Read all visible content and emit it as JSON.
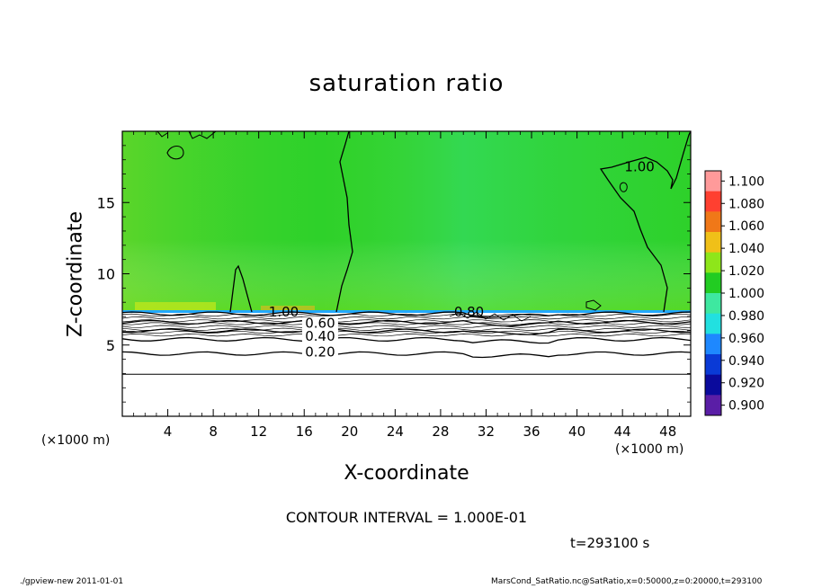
{
  "figure": {
    "title": "saturation ratio",
    "contour_interval": "CONTOUR INTERVAL = 1.000E-01",
    "time_label": "t=293100 s",
    "footer_left": "./gpview-new  2011-01-01",
    "footer_right": "MarsCond_SatRatio.nc@SatRatio,x=0:50000,z=0:20000,t=293100"
  },
  "chart_data": {
    "type": "heatmap",
    "title": "saturation ratio",
    "xlabel": "X-coordinate",
    "ylabel": "Z-coordinate",
    "x_unit_label": "(×1000 m)",
    "y_unit_label": "(×1000 m)",
    "xlim": [
      0,
      50
    ],
    "ylim": [
      0,
      20
    ],
    "x_ticks": [
      4,
      8,
      12,
      16,
      20,
      24,
      28,
      32,
      36,
      40,
      44,
      48
    ],
    "y_ticks": [
      5,
      10,
      15
    ],
    "grid": false,
    "colorbar": {
      "placement": "right",
      "levels": [
        "0.900",
        "0.920",
        "0.940",
        "0.960",
        "0.980",
        "1.000",
        "1.020",
        "1.040",
        "1.060",
        "1.080",
        "1.100"
      ],
      "colors": [
        "#5a1ea6",
        "#0a0a9c",
        "#0a3ad6",
        "#1e88ff",
        "#22e0e0",
        "#3ee8a0",
        "#22cc22",
        "#8ee61a",
        "#f0c018",
        "#f07818",
        "#ff4030",
        "#ff9a9a"
      ]
    },
    "contour_labels": [
      "1.00",
      "1.00",
      "0.80",
      "0.60",
      "0.40",
      "0.20"
    ],
    "field_summary": {
      "upper_region_z_range": [
        7.2,
        20
      ],
      "upper_region_value_range": [
        0.98,
        1.03
      ],
      "lower_region_value_range": [
        0.0,
        0.9
      ]
    },
    "contours": [
      {
        "level": 0.2,
        "z": 4.4
      },
      {
        "level": 0.4,
        "z": 5.4
      },
      {
        "level": 0.6,
        "z": 6.0
      },
      {
        "level": 0.8,
        "z": 6.6
      },
      {
        "level": 1.0,
        "z": 7.2
      }
    ]
  }
}
